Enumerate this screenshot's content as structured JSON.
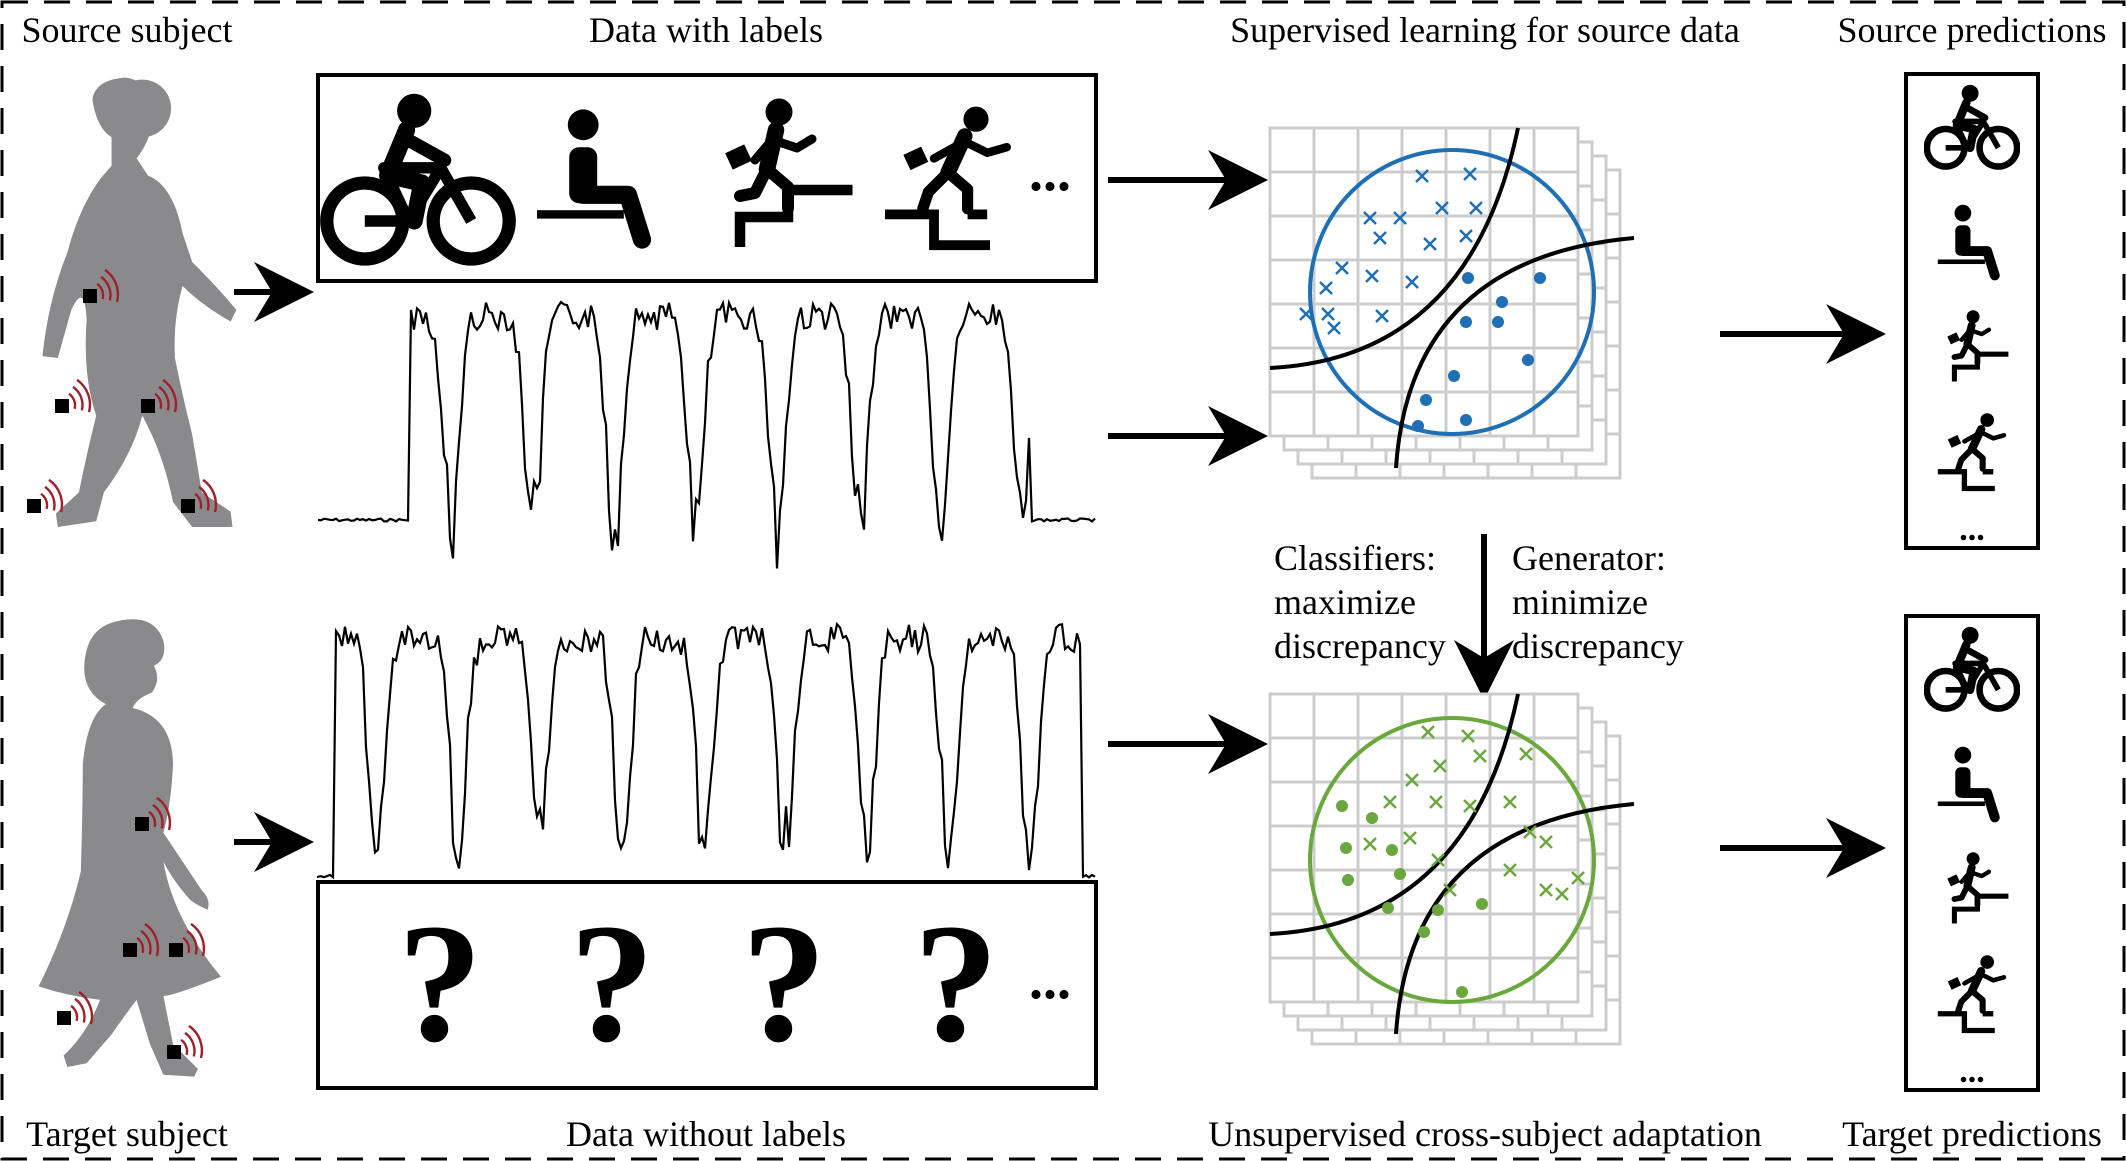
{
  "labels": {
    "source_subject": "Source subject",
    "data_with_labels": "Data with labels",
    "supervised": "Supervised learning for source data",
    "source_predictions": "Source predictions",
    "target_subject": "Target subject",
    "data_without_labels": "Data without labels",
    "unsupervised": "Unsupervised cross-subject adaptation",
    "target_predictions": "Target predictions",
    "classifiers_1": "Classifiers:",
    "classifiers_2": "maximize",
    "classifiers_3": "discrepancy",
    "generator_1": "Generator:",
    "generator_2": "minimize",
    "generator_3": "discrepancy",
    "ellipsis": "...",
    "question": "?"
  },
  "colors": {
    "source_blue": "#1f6fb4",
    "target_green": "#6aa83e",
    "silhouette_gray": "#8a8a8c",
    "sensor_wave_red": "#a0202a",
    "grid_gray": "#cccccc"
  },
  "icons": [
    "cycling-icon",
    "sitting-icon",
    "stair-descent-icon",
    "stair-ascent-icon"
  ]
}
